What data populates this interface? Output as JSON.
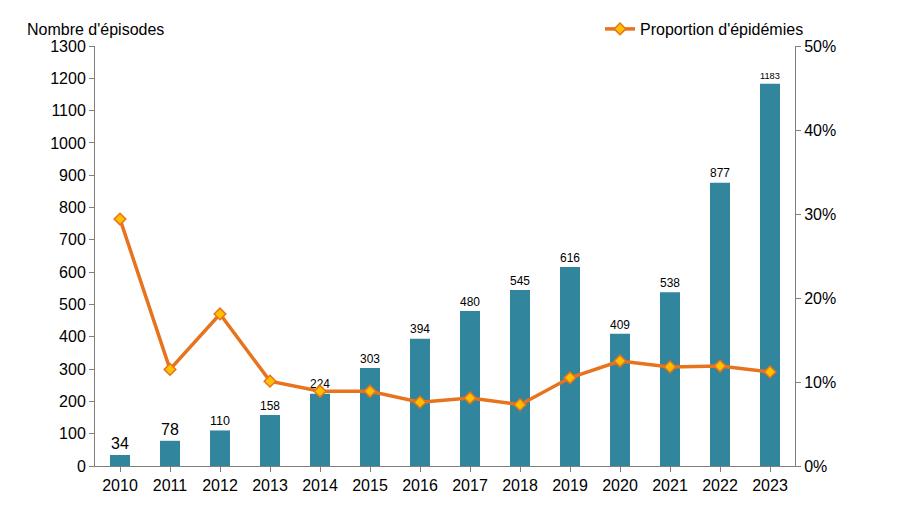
{
  "chart_data": {
    "type": "bar",
    "ylabel": "Nombre d'épisodes",
    "categories": [
      "2010",
      "2011",
      "2012",
      "2013",
      "2014",
      "2015",
      "2016",
      "2017",
      "2018",
      "2019",
      "2020",
      "2021",
      "2022",
      "2023"
    ],
    "series": [
      {
        "type": "bar",
        "color": "#31859C",
        "values": [
          34,
          78,
          110,
          158,
          224,
          303,
          394,
          480,
          545,
          616,
          409,
          538,
          877,
          1183
        ]
      },
      {
        "type": "line",
        "name": "Proportion d'épidémies",
        "color": "#E8731E",
        "marker": "diamond",
        "axis": "y2",
        "values": [
          29.4,
          11.5,
          18.1,
          10.1,
          8.9,
          8.9,
          7.6,
          8.1,
          7.3,
          10.5,
          12.5,
          11.8,
          11.9,
          11.2
        ]
      }
    ],
    "ylim": [
      0,
      1300
    ],
    "yticks": [
      0,
      100,
      200,
      300,
      400,
      500,
      600,
      700,
      800,
      900,
      1000,
      1100,
      1200,
      1300
    ],
    "y2lim": [
      0,
      50
    ],
    "y2ticks": [
      {
        "value": 0,
        "label": "0%"
      },
      {
        "value": 10,
        "label": "10%"
      },
      {
        "value": 20,
        "label": "20%"
      },
      {
        "value": 30,
        "label": "30%"
      },
      {
        "value": 40,
        "label": "40%"
      },
      {
        "value": 50,
        "label": "50%"
      }
    ],
    "data_labels": true,
    "grid": false,
    "legend": "top right"
  }
}
